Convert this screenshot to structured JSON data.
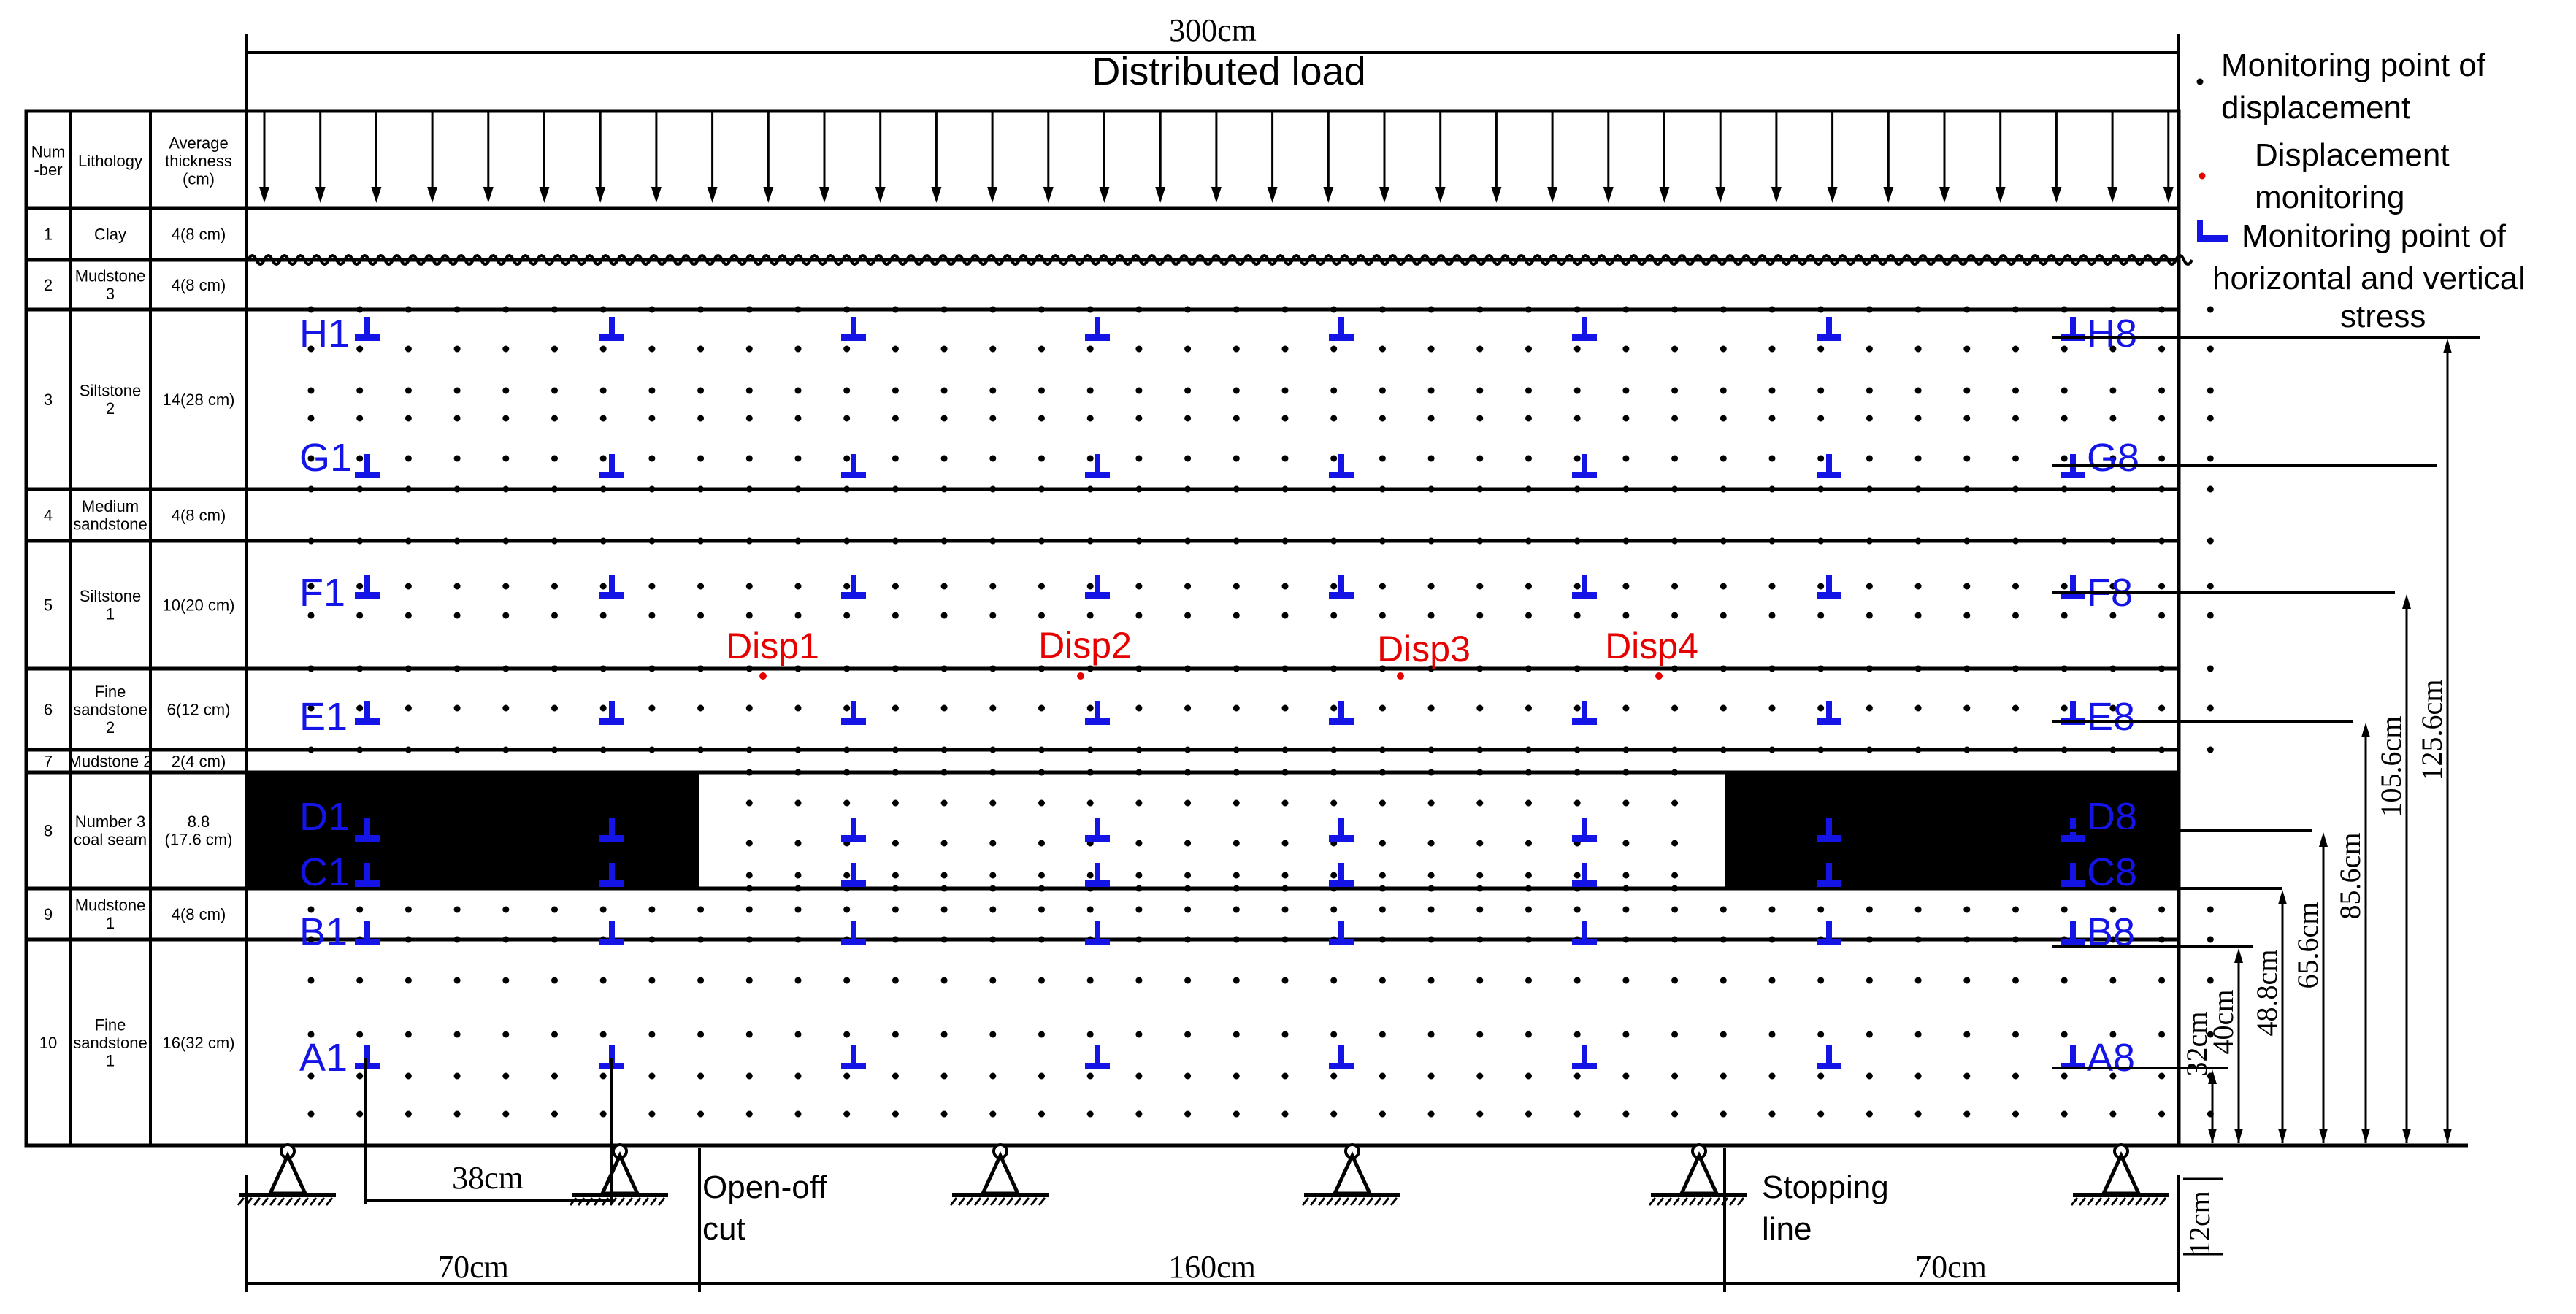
{
  "dimensions": {
    "total_width": "300cm",
    "left_pillar": "70cm",
    "mined_span": "160cm",
    "right_pillar": "70cm",
    "gauge_spacing": "38cm",
    "base_offset": "12cm",
    "heights": [
      "32cm",
      "40cm",
      "48.8cm",
      "65.6cm",
      "85.6cm",
      "105.6cm",
      "125.6cm"
    ]
  },
  "load_label": "Distributed load",
  "table": {
    "headers": [
      "Num\n-ber",
      "Lithology",
      "Average\nthickness\n(cm)"
    ],
    "rows": [
      {
        "num": "1",
        "lithology": "Clay",
        "thickness": "4(8 cm)"
      },
      {
        "num": "2",
        "lithology": "Mudstone\n3",
        "thickness": "4(8 cm)"
      },
      {
        "num": "3",
        "lithology": "Siltstone\n2",
        "thickness": "14(28 cm)"
      },
      {
        "num": "4",
        "lithology": "Medium\nsandstone",
        "thickness": "4(8 cm)"
      },
      {
        "num": "5",
        "lithology": "Siltstone\n1",
        "thickness": "10(20 cm)"
      },
      {
        "num": "6",
        "lithology": "Fine\nsandstone\n2",
        "thickness": "6(12 cm)"
      },
      {
        "num": "7",
        "lithology": "Mudstone 2",
        "thickness": "2(4 cm)"
      },
      {
        "num": "8",
        "lithology": "Number 3\ncoal seam",
        "thickness": "8.8\n(17.6 cm)"
      },
      {
        "num": "9",
        "lithology": "Mudstone\n1",
        "thickness": "4(8 cm)"
      },
      {
        "num": "10",
        "lithology": "Fine\nsandstone\n1",
        "thickness": "16(32 cm)"
      }
    ]
  },
  "gauge_rows": [
    {
      "left": "H1",
      "right": "H8"
    },
    {
      "left": "G1",
      "right": "G8"
    },
    {
      "left": "F1",
      "right": "F8"
    },
    {
      "left": "E1",
      "right": "E8"
    },
    {
      "left": "D1",
      "right": "D8"
    },
    {
      "left": "C1",
      "right": "C8"
    },
    {
      "left": "B1",
      "right": "B8"
    },
    {
      "left": "A1",
      "right": "A8"
    }
  ],
  "displacement_labels": [
    "Disp1",
    "Disp2",
    "Disp3",
    "Disp4"
  ],
  "annotations": {
    "open_off_cut": [
      "Open-off",
      "cut"
    ],
    "stopping_line": [
      "Stopping",
      "line"
    ]
  },
  "legend": {
    "black_dot": [
      "Monitoring point of",
      "displacement"
    ],
    "red_dot": [
      "Displacement",
      "monitoring"
    ],
    "stress": [
      "Monitoring point of",
      "horizontal and vertical",
      "stress"
    ]
  },
  "colors": {
    "line": "#000000",
    "gauge": "#1414e6",
    "displacement": "#e60000",
    "coal": "#000000"
  }
}
